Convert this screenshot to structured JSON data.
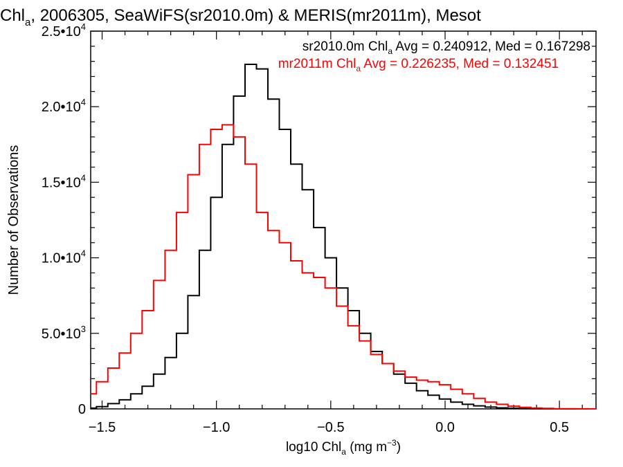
{
  "chart_data": {
    "type": "line",
    "title_main": "Chl",
    "title_sub": "a",
    "title_rest": ", 2006305, SeaWiFS(sr2010.0m) & MERIS(mr2011m), Mesot",
    "xlabel_main": "log10 Chl",
    "xlabel_sub": "a",
    "xlabel_units": " (mg m",
    "xlabel_exp": "−3",
    "xlabel_close": ")",
    "ylabel": "Number of Observations",
    "xlim": [
      -1.55,
      0.66
    ],
    "ylim": [
      0,
      25000
    ],
    "x_ticks": [
      {
        "value": -1.5,
        "label": "−1.5"
      },
      {
        "value": -1.0,
        "label": "−1.0"
      },
      {
        "value": -0.5,
        "label": "−0.5"
      },
      {
        "value": 0.0,
        "label": "0.0"
      },
      {
        "value": 0.5,
        "label": "0.5"
      }
    ],
    "y_ticks": [
      {
        "value": 0,
        "mant": "0",
        "exp": ""
      },
      {
        "value": 5000,
        "mant": "5.0•10",
        "exp": "3"
      },
      {
        "value": 10000,
        "mant": "1.0•10",
        "exp": "4"
      },
      {
        "value": 15000,
        "mant": "1.5•10",
        "exp": "4"
      },
      {
        "value": 20000,
        "mant": "2.0•10",
        "exp": "4"
      },
      {
        "value": 25000,
        "mant": "2.5•10",
        "exp": "4"
      }
    ],
    "grid": false,
    "legend_position": "top-right",
    "series": [
      {
        "name": "sr2010.0m",
        "color": "#000000",
        "label_pre": "sr2010.0m Chl",
        "label_sub": "a",
        "label_post": " Avg = 0.240912, Med = 0.167298",
        "x": [
          -1.55,
          -1.5,
          -1.45,
          -1.4,
          -1.35,
          -1.3,
          -1.25,
          -1.2,
          -1.15,
          -1.1,
          -1.05,
          -1.0,
          -0.95,
          -0.9,
          -0.85,
          -0.8,
          -0.75,
          -0.7,
          -0.65,
          -0.6,
          -0.55,
          -0.5,
          -0.45,
          -0.4,
          -0.35,
          -0.3,
          -0.25,
          -0.2,
          -0.15,
          -0.1,
          -0.05,
          0.0,
          0.05,
          0.1,
          0.15,
          0.2,
          0.25,
          0.3,
          0.35,
          0.4,
          0.45,
          0.5,
          0.55,
          0.6,
          0.66
        ],
        "y": [
          50,
          150,
          350,
          600,
          1000,
          1500,
          2300,
          3400,
          5000,
          7500,
          10500,
          14000,
          17500,
          20700,
          22800,
          22500,
          20500,
          18500,
          16200,
          14500,
          12000,
          10000,
          8000,
          6500,
          5000,
          3800,
          3000,
          2300,
          1700,
          1200,
          900,
          650,
          450,
          300,
          200,
          120,
          70,
          40,
          20,
          10,
          5,
          2,
          1,
          0,
          0
        ]
      },
      {
        "name": "mr2011m",
        "color": "#ff0000",
        "label_pre": "mr2011m Chl",
        "label_sub": "a",
        "label_post": " Avg = 0.226235, Med = 0.132451",
        "x": [
          -1.55,
          -1.5,
          -1.45,
          -1.4,
          -1.35,
          -1.3,
          -1.25,
          -1.2,
          -1.15,
          -1.1,
          -1.05,
          -1.0,
          -0.95,
          -0.9,
          -0.85,
          -0.8,
          -0.75,
          -0.7,
          -0.65,
          -0.6,
          -0.55,
          -0.5,
          -0.45,
          -0.4,
          -0.35,
          -0.3,
          -0.25,
          -0.2,
          -0.15,
          -0.1,
          -0.05,
          0.0,
          0.05,
          0.1,
          0.15,
          0.2,
          0.25,
          0.3,
          0.35,
          0.4,
          0.45,
          0.5,
          0.55,
          0.6,
          0.66
        ],
        "y": [
          1000,
          1800,
          2700,
          3700,
          5000,
          6500,
          8500,
          10500,
          13000,
          15500,
          17500,
          18500,
          18800,
          18000,
          16200,
          13000,
          11800,
          11000,
          9800,
          9000,
          8700,
          8000,
          6800,
          5500,
          4500,
          3600,
          3000,
          2500,
          2100,
          1900,
          1800,
          1600,
          1300,
          1000,
          700,
          450,
          300,
          180,
          100,
          60,
          30,
          15,
          8,
          3,
          0
        ]
      }
    ]
  }
}
